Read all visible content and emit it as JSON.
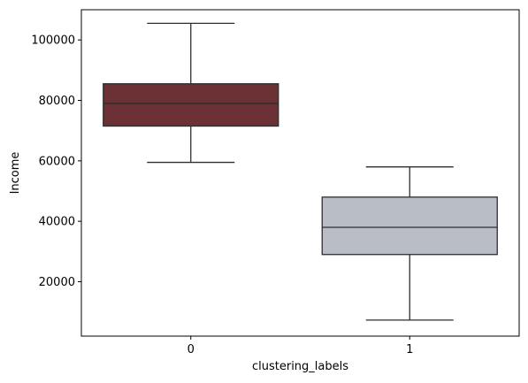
{
  "chart_data": {
    "type": "box",
    "xlabel": "clustering_labels",
    "ylabel": "Income",
    "categories": [
      "0",
      "1"
    ],
    "ylim": [
      2000,
      110000
    ],
    "yticks": [
      20000,
      40000,
      60000,
      80000,
      100000
    ],
    "ytick_labels": [
      "20000",
      "40000",
      "60000",
      "80000",
      "100000"
    ],
    "grid": false,
    "legend": "none",
    "boxes": [
      {
        "category": "0",
        "whisker_low": 59500,
        "q1": 71500,
        "median": 79000,
        "q3": 85500,
        "whisker_high": 105500,
        "color": "#6b3134"
      },
      {
        "category": "1",
        "whisker_low": 7300,
        "q1": 29000,
        "median": 38000,
        "q3": 48000,
        "whisker_high": 58000,
        "color": "#b9bdc6"
      }
    ]
  }
}
